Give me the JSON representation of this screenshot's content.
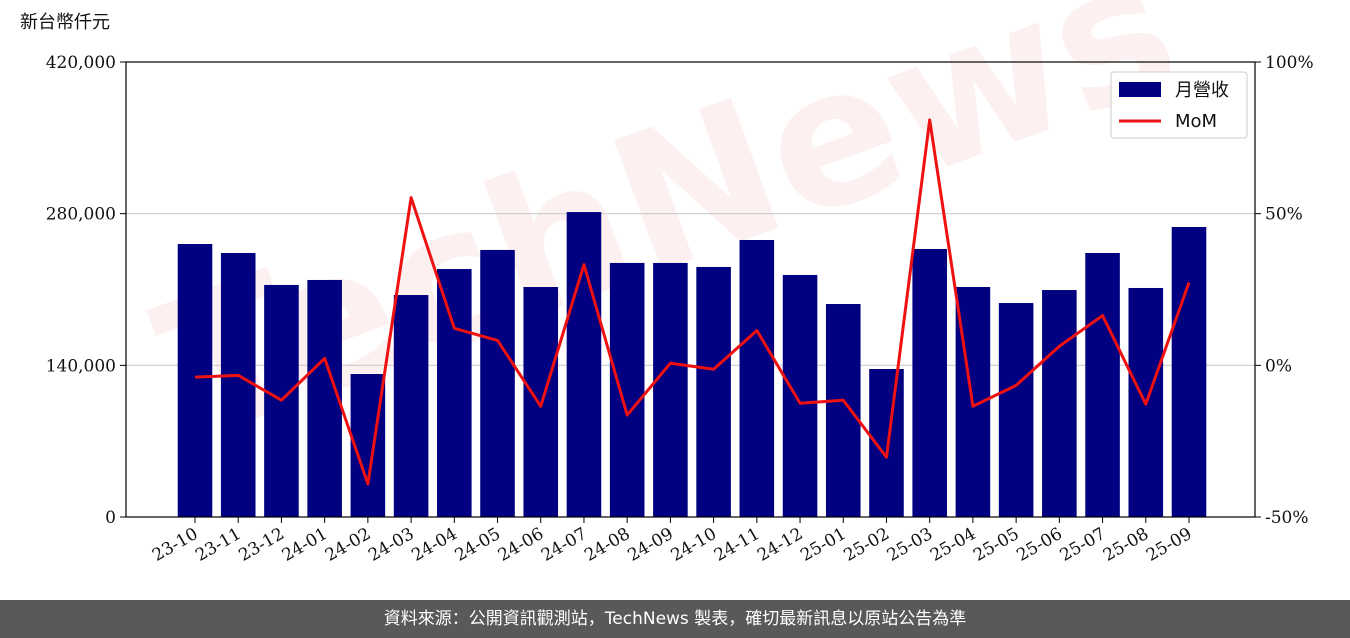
{
  "chart_data": {
    "type": "bar",
    "y_label": "新台幣仟元",
    "watermark": "TechNews",
    "categories": [
      "23-10",
      "23-11",
      "23-12",
      "24-01",
      "24-02",
      "24-03",
      "24-04",
      "24-05",
      "24-06",
      "24-07",
      "24-08",
      "24-09",
      "24-10",
      "24-11",
      "24-12",
      "25-01",
      "25-02",
      "25-03",
      "25-04",
      "25-05",
      "25-06",
      "25-07",
      "25-08",
      "25-09"
    ],
    "series": [
      {
        "name": "月營收",
        "type": "bar",
        "color": "#000080",
        "values": [
          252000,
          243700,
          214200,
          218800,
          132000,
          204900,
          228900,
          246500,
          212300,
          281500,
          234500,
          234500,
          230800,
          255700,
          223400,
          196600,
          136600,
          247400,
          212300,
          197500,
          209500,
          243700,
          211400,
          267700
        ]
      },
      {
        "name": "MoM",
        "type": "line",
        "axis": "y2",
        "color": "#ee1111",
        "values": [
          -3.9,
          -3.3,
          -11.5,
          2.3,
          -39.1,
          55.3,
          12.2,
          8.2,
          -13.5,
          33.2,
          -16.4,
          0.7,
          -1.3,
          11.5,
          -12.5,
          -11.5,
          -30.3,
          80.9,
          -13.5,
          -6.6,
          6.3,
          16.4,
          -12.8,
          27.3
        ]
      }
    ],
    "ylim": [
      0,
      420000
    ],
    "yticks": [
      0,
      {
        "value": 140000,
        "label": "140,000"
      },
      {
        "value": 280000,
        "label": "280,000"
      },
      {
        "value": 420000,
        "label": "420,000"
      }
    ],
    "y2lim": [
      -50,
      100
    ],
    "y2ticks": [
      {
        "value": -50,
        "label": "-50%"
      },
      {
        "value": 0,
        "label": "0%"
      },
      {
        "value": 50,
        "label": "50%"
      },
      {
        "value": 100,
        "label": "100%"
      }
    ],
    "grid": true,
    "legend": "upper right",
    "footer": "資料來源：公開資訊觀測站，TechNews 製表，確切最新訊息以原站公告為準"
  }
}
